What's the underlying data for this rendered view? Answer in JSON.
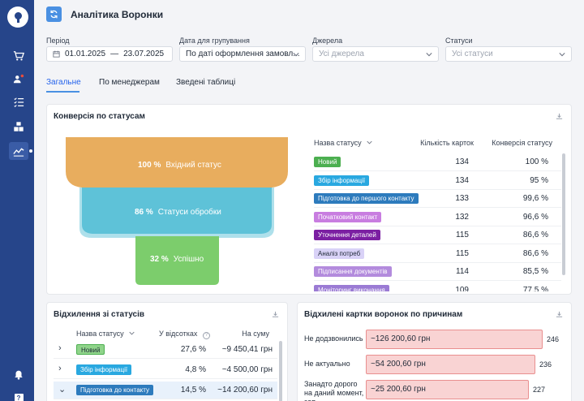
{
  "sidebar": {
    "items": [
      {
        "icon": "cart-icon"
      },
      {
        "icon": "users-icon"
      },
      {
        "icon": "list-icon"
      },
      {
        "icon": "boxes-icon"
      },
      {
        "icon": "chart-icon",
        "active": true
      },
      {
        "icon": "bell-icon"
      },
      {
        "icon": "help-icon",
        "label": "?"
      }
    ]
  },
  "header": {
    "title": "Аналітика Воронки"
  },
  "filters": {
    "period": {
      "label": "Період",
      "from": "01.01.2025",
      "separator": "—",
      "to": "23.07.2025"
    },
    "group_date": {
      "label": "Дата для групування",
      "value": "По даті оформлення замовл..."
    },
    "sources": {
      "label": "Джерела",
      "placeholder": "Усі джерела"
    },
    "statuses": {
      "label": "Статуси",
      "placeholder": "Усі статуси"
    }
  },
  "tabs": [
    {
      "label": "Загальне",
      "active": true
    },
    {
      "label": "По менеджерам"
    },
    {
      "label": "Зведені таблиці"
    }
  ],
  "funnel_card": {
    "title": "Конверсія по статусам",
    "stages": [
      {
        "percent": "100 %",
        "label": "Вхідний статус",
        "color": "#e8ad5e"
      },
      {
        "percent": "86 %",
        "label": "Статуси обробки",
        "color": "#5ec2d8"
      },
      {
        "percent": "32 %",
        "label": "Успішно",
        "color": "#7ccd6c"
      }
    ],
    "table": {
      "headers": {
        "status": "Назва статусу",
        "count": "Кількість карток",
        "conversion": "Конверсія статусу"
      },
      "rows": [
        {
          "status": "Новий",
          "count": "134",
          "conversion": "100 %",
          "bg": "#4caf50",
          "fg": "#ffffff"
        },
        {
          "status": "Збір інформації",
          "count": "134",
          "conversion": "95 %",
          "bg": "#29a8e0",
          "fg": "#ffffff"
        },
        {
          "status": "Підготовка до першого контакту",
          "count": "133",
          "conversion": "99,6 %",
          "bg": "#2d7bbd",
          "fg": "#ffffff"
        },
        {
          "status": "Початковий контакт",
          "count": "132",
          "conversion": "96,6 %",
          "bg": "#c87de0",
          "fg": "#ffffff"
        },
        {
          "status": "Уточнення деталей",
          "count": "115",
          "conversion": "86,6 %",
          "bg": "#7b1fa2",
          "fg": "#ffffff"
        },
        {
          "status": "Аналіз потреб",
          "count": "115",
          "conversion": "86,6 %",
          "bg": "#d9d2f7",
          "fg": "#1f2937"
        },
        {
          "status": "Підписання документів",
          "count": "114",
          "conversion": "85,5 %",
          "bg": "#b38bdd",
          "fg": "#ffffff"
        },
        {
          "status": "Моніторинг виконання",
          "count": "109",
          "conversion": "77,5 %",
          "bg": "#9b7bd4",
          "fg": "#ffffff"
        }
      ]
    }
  },
  "deviation_card": {
    "title": "Відхилення зі статусів",
    "headers": {
      "status": "Назва статусу",
      "share": "У відсотках",
      "sum": "На суму"
    },
    "rows": [
      {
        "status": "Новий",
        "share": "27,6 %",
        "sum": "~9 450,41 грн",
        "bg": "#8fd48a",
        "fg": "#1f2937",
        "chevron": "›"
      },
      {
        "status": "Збір інформації",
        "share": "4,8 %",
        "sum": "~4 500,00 грн",
        "bg": "#29a8e0",
        "fg": "#ffffff",
        "chevron": "›"
      },
      {
        "status": "Підготовка до контакту",
        "share": "14,5 %",
        "sum": "~14 200,60 грн",
        "bg": "#2d7bbd",
        "fg": "#ffffff",
        "chevron": "⌄",
        "expanded": true
      }
    ]
  },
  "reasons_card": {
    "title": "Відхилені картки воронок по причинам",
    "rows": [
      {
        "label": "Не додзвонились",
        "amount": "~126 200,60 грн",
        "count": "246",
        "share": 1.0
      },
      {
        "label": "Не актуально",
        "amount": "~54 200,60 грн",
        "count": "236",
        "share": 0.959
      },
      {
        "label": "Занадто дорого на даний момент, зап...",
        "amount": "~25 200,60 грн",
        "count": "227",
        "share": 0.923
      }
    ]
  }
}
